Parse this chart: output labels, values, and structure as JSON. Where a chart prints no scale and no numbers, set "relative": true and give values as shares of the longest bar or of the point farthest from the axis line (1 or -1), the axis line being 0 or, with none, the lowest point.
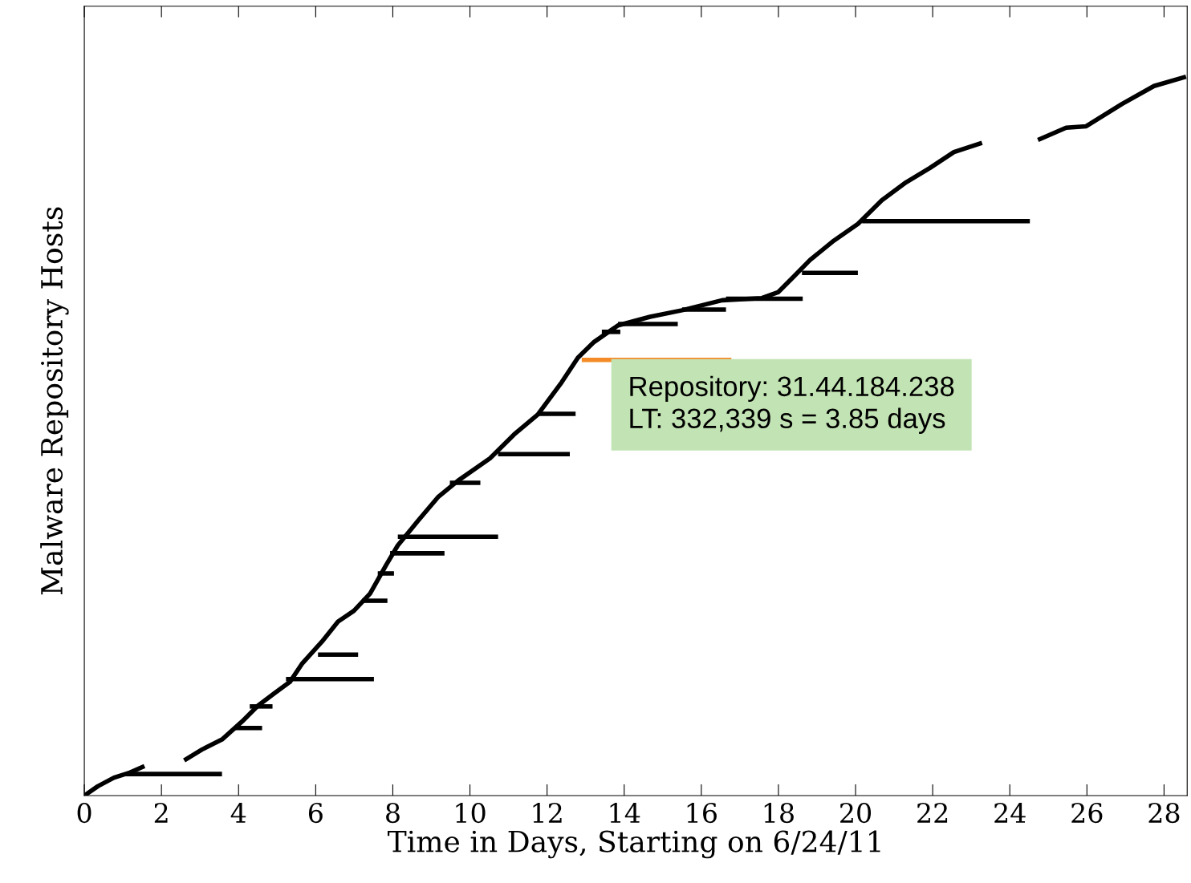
{
  "chart_data": {
    "type": "line",
    "relative": true,
    "xlabel": "Time in Days, Starting on 6/24/11",
    "ylabel": "Malware Repository Hosts",
    "xlim": [
      0,
      28.6
    ],
    "xticks": [
      0,
      2,
      4,
      6,
      8,
      10,
      12,
      14,
      16,
      18,
      20,
      22,
      24,
      26,
      28
    ],
    "grid": false,
    "legend": false,
    "marker": "none",
    "line_style": "solid",
    "annotations": [
      "Repository: 31.44.184.238\nLT: 332,339 s = 3.85 days"
    ],
    "series": [
      {
        "color": "#000000",
        "x": [
          0,
          0.35,
          0.77,
          1.18,
          1.56,
          2.07,
          2.59,
          3.05,
          3.57,
          4.09,
          4.5,
          4.92,
          5.33,
          5.64,
          6.16,
          6.58,
          6.99,
          7.41,
          7.82,
          8.13,
          8.65,
          9.17,
          9.69,
          10.52,
          11.14,
          11.76,
          12.38,
          12.8,
          13.22,
          13.84,
          14.67,
          15.5,
          16.54,
          17.57,
          17.99,
          18.4,
          18.82,
          19.44,
          20.06,
          20.68,
          21.31,
          21.93,
          22.55,
          23.28,
          24.0,
          24.73,
          25.46,
          25.98,
          26.91,
          27.74,
          28.57
        ],
        "values": [
          0,
          0.013,
          0.025,
          0.032,
          0.041,
          null,
          0.049,
          0.064,
          0.078,
          0.103,
          0.125,
          0.142,
          0.158,
          0.183,
          0.214,
          0.242,
          0.257,
          0.281,
          0.32,
          0.348,
          0.382,
          0.415,
          0.438,
          0.469,
          0.502,
          0.53,
          0.575,
          0.609,
          0.631,
          0.654,
          0.666,
          0.675,
          0.689,
          0.692,
          0.7,
          0.722,
          0.745,
          0.772,
          0.795,
          0.828,
          0.853,
          0.873,
          0.895,
          0.908,
          null,
          0.912,
          0.929,
          0.931,
          0.962,
          0.987,
          1.0
        ]
      },
      {
        "color": "#000000",
        "x": [
          1.08,
          3.57
        ],
        "values": [
          0.03,
          0.03
        ]
      },
      {
        "color": "#000000",
        "x": [
          3.88,
          4.61
        ],
        "values": [
          0.094,
          0.094
        ]
      },
      {
        "color": "#000000",
        "x": [
          4.29,
          4.88
        ],
        "values": [
          0.124,
          0.124
        ]
      },
      {
        "color": "#000000",
        "x": [
          5.23,
          7.51
        ],
        "values": [
          0.162,
          0.162
        ]
      },
      {
        "color": "#000000",
        "x": [
          6.06,
          7.1
        ],
        "values": [
          0.196,
          0.196
        ]
      },
      {
        "color": "#000000",
        "x": [
          7.2,
          7.86
        ],
        "values": [
          0.271,
          0.271
        ]
      },
      {
        "color": "#000000",
        "x": [
          7.61,
          8.03
        ],
        "values": [
          0.309,
          0.309
        ]
      },
      {
        "color": "#000000",
        "x": [
          7.93,
          9.34
        ],
        "values": [
          0.337,
          0.337
        ]
      },
      {
        "color": "#000000",
        "x": [
          8.13,
          10.73
        ],
        "values": [
          0.36,
          0.36
        ]
      },
      {
        "color": "#000000",
        "x": [
          9.48,
          10.27
        ],
        "values": [
          0.435,
          0.435
        ]
      },
      {
        "color": "#000000",
        "x": [
          10.73,
          12.59
        ],
        "values": [
          0.475,
          0.475
        ]
      },
      {
        "color": "#000000",
        "x": [
          11.76,
          12.74
        ],
        "values": [
          0.531,
          0.531
        ]
      },
      {
        "color": "#f58b28",
        "x": [
          12.9,
          16.78
        ],
        "values": [
          0.606,
          0.606
        ]
      },
      {
        "color": "#000000",
        "x": [
          13.42,
          13.9
        ],
        "values": [
          0.645,
          0.645
        ]
      },
      {
        "color": "#000000",
        "x": [
          13.84,
          15.39
        ],
        "values": [
          0.656,
          0.656
        ]
      },
      {
        "color": "#000000",
        "x": [
          15.5,
          16.64
        ],
        "values": [
          0.676,
          0.676
        ]
      },
      {
        "color": "#000000",
        "x": [
          16.64,
          18.63
        ],
        "values": [
          0.691,
          0.691
        ]
      },
      {
        "color": "#000000",
        "x": [
          18.61,
          20.06
        ],
        "values": [
          0.727,
          0.727
        ]
      },
      {
        "color": "#000000",
        "x": [
          20.17,
          24.52
        ],
        "values": [
          0.799,
          0.799
        ]
      }
    ]
  }
}
